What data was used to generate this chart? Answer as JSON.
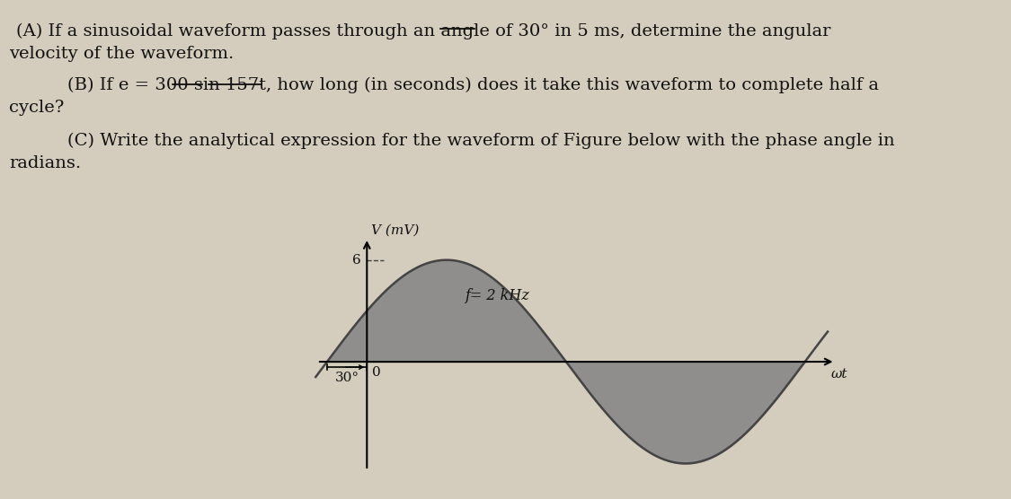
{
  "title_a_line1": "(A) If a sinusoidal waveform passes through an angle of 30° in 5 ms, determine the angular",
  "title_a_line2": "velocity of the waveform.",
  "title_b_line1": "    (B) If e = 300 sin 157t, how long (in seconds) does it take this waveform to complete half a",
  "title_b_line2": "cycle? ",
  "title_c_line1": "    (C) Write the analytical expression for the waveform of Figure below with the phase angle in",
  "title_c_line2": "radians.",
  "ylabel": "V (mV)",
  "xlabel": "ωt",
  "y_tick_label": "6",
  "x_origin_label": "0",
  "x_phase_label": "30°",
  "freq_label": "f= 2 kHz",
  "amplitude": 6,
  "phase_deg": 30,
  "wave_color": "#444444",
  "fill_color": "#888888",
  "text_color": "#111111",
  "fig_bg": "#d4ccbc",
  "graph_bg": "#d4ccbc"
}
